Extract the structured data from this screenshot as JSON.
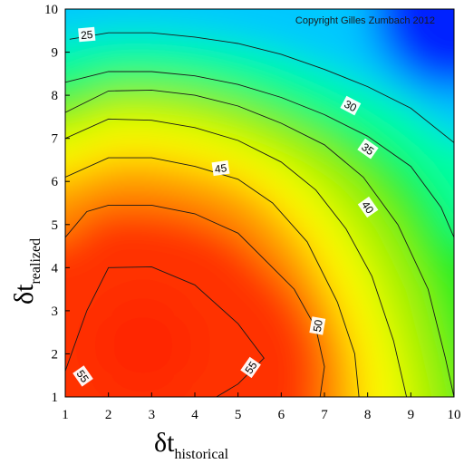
{
  "chart_data": {
    "type": "heatmap",
    "subtype": "filled-contour",
    "title": "",
    "annotation": "Copyright Gilles Zumbach 2012",
    "xlabel": {
      "symbol": "δt",
      "subscript": "historical"
    },
    "ylabel": {
      "symbol": "δt",
      "subscript": "realized"
    },
    "xlim": [
      1,
      10
    ],
    "ylim": [
      1,
      10
    ],
    "xticks": [
      "1",
      "2",
      "3",
      "4",
      "5",
      "6",
      "7",
      "8",
      "9",
      "10"
    ],
    "yticks": [
      "1",
      "2",
      "3",
      "4",
      "5",
      "6",
      "7",
      "8",
      "9",
      "10"
    ],
    "grid": false,
    "colormap": [
      "#0022ff",
      "#00c8ff",
      "#00ffa0",
      "#22ee22",
      "#ffff00",
      "#ff9900",
      "#ff3300"
    ],
    "value_range": [
      15,
      60
    ],
    "peak": {
      "x": 2.8,
      "y": 2.2,
      "value": 58
    },
    "contours": [
      {
        "level": "25",
        "points": [
          [
            1.1,
            9.3
          ],
          [
            2.0,
            9.45
          ],
          [
            3.0,
            9.45
          ],
          [
            4.0,
            9.35
          ],
          [
            5.0,
            9.2
          ],
          [
            6.0,
            8.95
          ],
          [
            7.0,
            8.6
          ],
          [
            8.0,
            8.2
          ],
          [
            9.0,
            7.7
          ],
          [
            10.0,
            6.9
          ]
        ],
        "label_at": [
          1.5,
          9.4
        ],
        "label_angle": -5
      },
      {
        "level": "30",
        "points": [
          [
            1.0,
            8.3
          ],
          [
            2.0,
            8.55
          ],
          [
            3.0,
            8.55
          ],
          [
            4.0,
            8.45
          ],
          [
            5.0,
            8.25
          ],
          [
            6.0,
            7.95
          ],
          [
            7.0,
            7.55
          ],
          [
            8.0,
            7.05
          ],
          [
            9.0,
            6.35
          ],
          [
            9.7,
            5.4
          ],
          [
            10.0,
            4.7
          ]
        ],
        "label_at": [
          7.6,
          7.75
        ],
        "label_angle": 28
      },
      {
        "level": "35",
        "points": [
          [
            1.0,
            7.6
          ],
          [
            2.0,
            8.1
          ],
          [
            3.0,
            8.12
          ],
          [
            4.0,
            8.0
          ],
          [
            5.0,
            7.75
          ],
          [
            6.0,
            7.35
          ],
          [
            7.0,
            6.85
          ],
          [
            7.9,
            6.1
          ],
          [
            8.7,
            5.0
          ],
          [
            9.4,
            3.5
          ],
          [
            9.8,
            1.9
          ],
          [
            10.0,
            1.0
          ]
        ],
        "label_at": [
          8.0,
          6.75
        ],
        "label_angle": 35
      },
      {
        "level": "40",
        "points": [
          [
            1.0,
            7.0
          ],
          [
            2.0,
            7.45
          ],
          [
            3.0,
            7.42
          ],
          [
            4.0,
            7.25
          ],
          [
            5.0,
            6.95
          ],
          [
            6.0,
            6.45
          ],
          [
            6.8,
            5.8
          ],
          [
            7.5,
            4.9
          ],
          [
            8.1,
            3.8
          ],
          [
            8.6,
            2.3
          ],
          [
            8.9,
            1.0
          ]
        ],
        "label_at": [
          8.0,
          5.4
        ],
        "label_angle": 55
      },
      {
        "level": "45",
        "points": [
          [
            1.0,
            6.1
          ],
          [
            2.0,
            6.55
          ],
          [
            3.0,
            6.55
          ],
          [
            4.0,
            6.35
          ],
          [
            5.0,
            6.05
          ],
          [
            5.8,
            5.5
          ],
          [
            6.6,
            4.6
          ],
          [
            7.3,
            3.2
          ],
          [
            7.7,
            2.0
          ],
          [
            7.8,
            1.0
          ]
        ],
        "label_at": [
          4.6,
          6.3
        ],
        "label_angle": -8
      },
      {
        "level": "50",
        "points": [
          [
            1.0,
            4.7
          ],
          [
            1.5,
            5.3
          ],
          [
            2.0,
            5.45
          ],
          [
            3.0,
            5.45
          ],
          [
            4.0,
            5.25
          ],
          [
            5.0,
            4.8
          ],
          [
            5.6,
            4.2
          ],
          [
            6.3,
            3.5
          ],
          [
            6.8,
            2.6
          ],
          [
            7.0,
            1.7
          ],
          [
            6.9,
            1.0
          ]
        ],
        "label_at": [
          6.85,
          2.65
        ],
        "label_angle": -80
      },
      {
        "level": "55",
        "points": [
          [
            1.0,
            1.6
          ],
          [
            1.5,
            3.0
          ],
          [
            2.0,
            4.0
          ],
          [
            3.0,
            4.02
          ],
          [
            4.0,
            3.6
          ],
          [
            5.0,
            2.7
          ],
          [
            5.6,
            1.9
          ],
          [
            5.0,
            1.3
          ],
          [
            4.5,
            1.0
          ]
        ],
        "label_at": [
          1.4,
          1.48
        ],
        "label_angle": 55,
        "label2_at": [
          5.3,
          1.68
        ]
      }
    ]
  }
}
